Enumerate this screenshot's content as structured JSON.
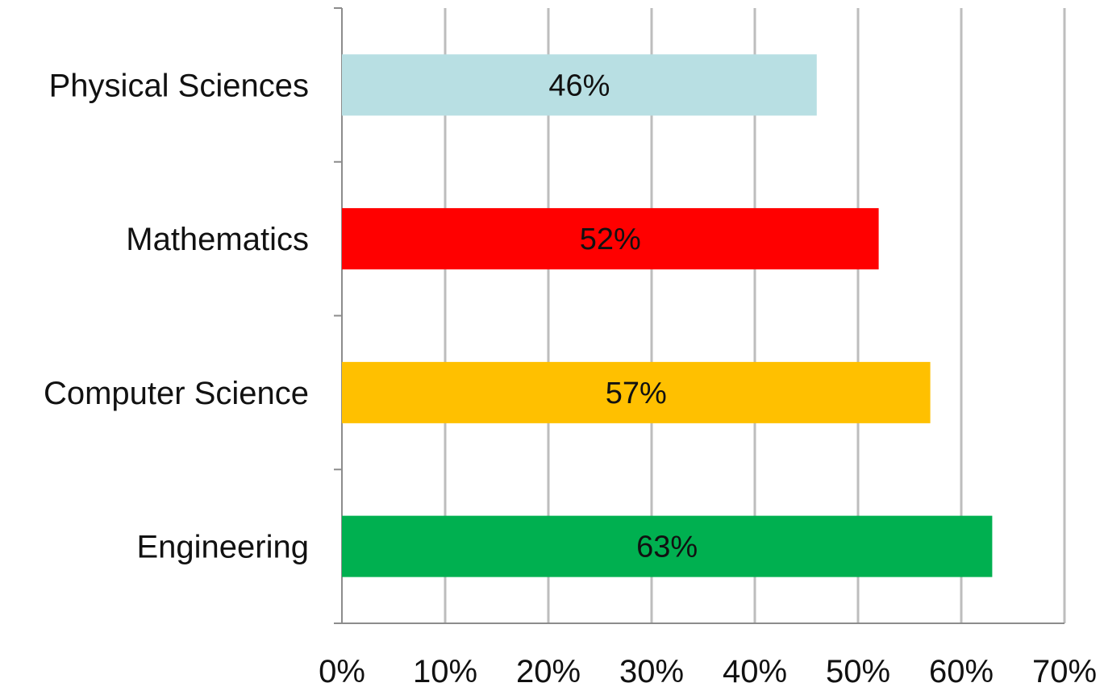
{
  "chart_data": {
    "type": "bar",
    "orientation": "horizontal",
    "title": "",
    "xlabel": "",
    "ylabel": "",
    "categories": [
      "Physical Sciences",
      "Mathematics",
      "Computer Science",
      "Engineering"
    ],
    "values": [
      46,
      52,
      57,
      63
    ],
    "data_labels": [
      "46%",
      "52%",
      "57%",
      "63%"
    ],
    "bar_colors": [
      "#b8dfe3",
      "#ff0000",
      "#ffc000",
      "#00b050"
    ],
    "xlim": [
      0,
      70
    ],
    "x_ticks": [
      0,
      10,
      20,
      30,
      40,
      50,
      60,
      70
    ],
    "x_tick_labels": [
      "0%",
      "10%",
      "20%",
      "30%",
      "40%",
      "50%",
      "60%",
      "70%"
    ],
    "grid": true,
    "legend": "none"
  }
}
